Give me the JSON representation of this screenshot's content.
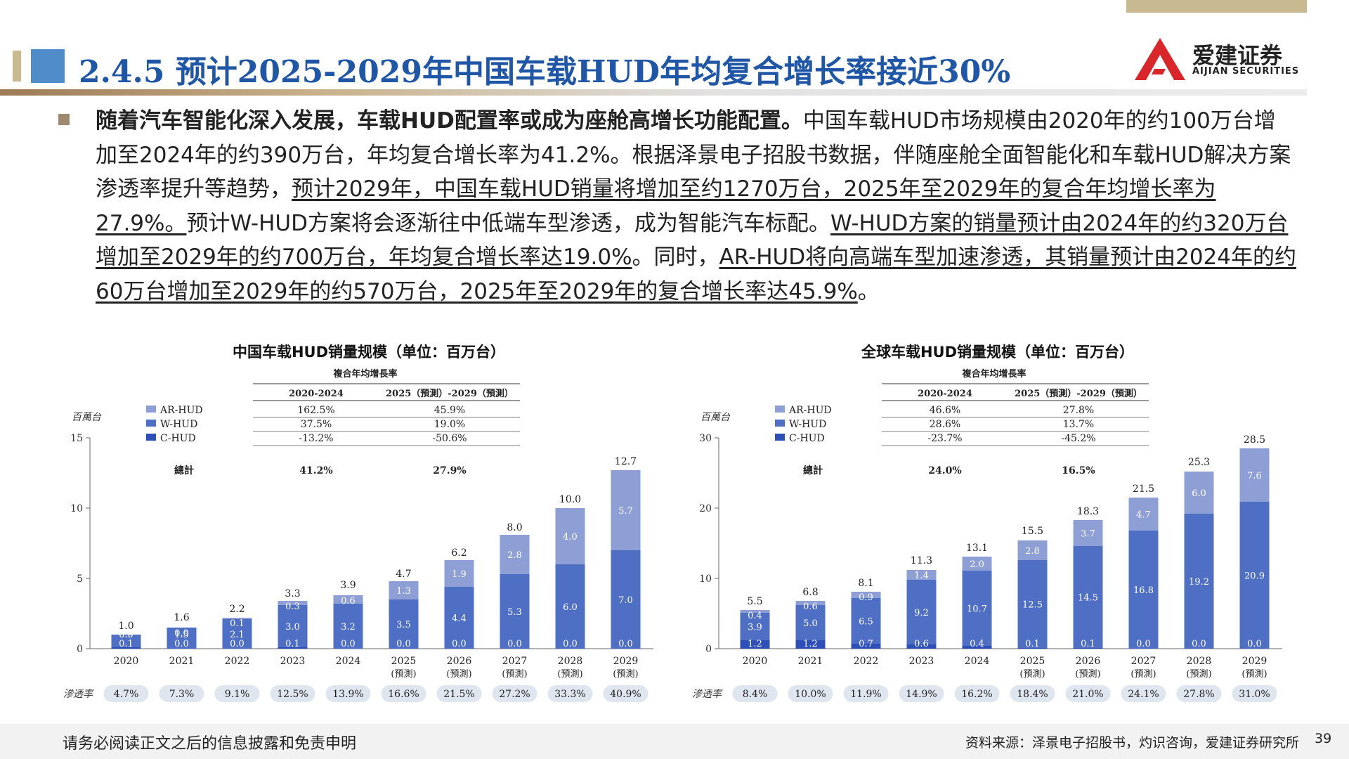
{
  "header": {
    "title": "2.4.5 预计2025-2029年中国车载HUD年均复合增长率接近30%",
    "logo_cn": "爱建证券",
    "logo_en": "AIJIAN SECURITIES"
  },
  "colors": {
    "title": "#1f56a5",
    "gold": "#c8b991",
    "ar_hud": "#8e9fd6",
    "w_hud": "#4f6fc4",
    "c_hud": "#2e4fb8"
  },
  "paragraph": {
    "s1": "随着汽车智能化深入发展，车载HUD配置率或成为座舱高增长功能配置。",
    "s2": "中国车载HUD市场规模由2020年的约100万台增加至2024年的约390万台，年均复合增长率为41.2%。根据泽景电子招股书数据，伴随座舱全面智能化和车载HUD解决方案渗透率提升等趋势，",
    "s3": "预计2029年，中国车载HUD销量将增加至约1270万台，2025年至2029年的复合年均增长率为27.9%。",
    "s4": "预计W-HUD方案将会逐渐往中低端车型渗透，成为智能汽车标配。",
    "s5": "W-HUD方案的销量预计由2024年的约320万台增加至2029年的约700万台，年均复合增长率达19.0%",
    "s6": "。同时，",
    "s7": "AR-HUD将向高端车型加速渗透，其销量预计由2024年的约60万台增加至2029年的约570万台，2025年至2029年的复合增长率达45.9%",
    "s8": "。"
  },
  "chart_data": [
    {
      "type": "bar",
      "stacked": true,
      "title": "中国车载HUD销量规模（单位：百万台）",
      "unit_label": "百萬台",
      "categories": [
        "2020",
        "2021",
        "2022",
        "2023",
        "2024",
        "2025",
        "2026",
        "2027",
        "2028",
        "2029"
      ],
      "category_sub": [
        "",
        "",
        "",
        "",
        "",
        "(預測)",
        "(預測)",
        "(預測)",
        "(預測)",
        "(預測)"
      ],
      "series": [
        {
          "name": "C-HUD",
          "values": [
            0.1,
            0.0,
            0.0,
            0.1,
            0.0,
            0.0,
            0.0,
            0.0,
            0.0,
            0.0
          ]
        },
        {
          "name": "W-HUD",
          "values": [
            0.9,
            1.5,
            2.1,
            3.0,
            3.2,
            3.5,
            4.4,
            5.3,
            6.0,
            7.0
          ]
        },
        {
          "name": "AR-HUD",
          "values": [
            0.0,
            0.0,
            0.1,
            0.3,
            0.6,
            1.3,
            1.9,
            2.8,
            4.0,
            5.7
          ]
        }
      ],
      "totals": [
        1.0,
        1.6,
        2.2,
        3.3,
        3.9,
        4.7,
        6.2,
        8.0,
        10.0,
        12.7
      ],
      "ylim": [
        0,
        15
      ],
      "yticks": [
        0,
        5,
        10,
        15
      ],
      "penetration_label": "滲透率",
      "penetration": [
        "4.7%",
        "7.3%",
        "9.1%",
        "12.5%",
        "13.9%",
        "16.6%",
        "21.5%",
        "27.2%",
        "33.3%",
        "40.9%"
      ],
      "cagr_table": {
        "title": "複合年均增長率",
        "col1": "2020-2024",
        "col2": "2025（預測）-2029（預測）",
        "rows": [
          {
            "name": "AR-HUD",
            "c1": "162.5%",
            "c2": "45.9%"
          },
          {
            "name": "W-HUD",
            "c1": "37.5%",
            "c2": "19.0%"
          },
          {
            "name": "C-HUD",
            "c1": "-13.2%",
            "c2": "-50.6%"
          }
        ],
        "total": {
          "name": "總計",
          "c1": "41.2%",
          "c2": "27.9%"
        }
      }
    },
    {
      "type": "bar",
      "stacked": true,
      "title": "全球车载HUD销量规模（单位：百万台）",
      "unit_label": "百萬台",
      "categories": [
        "2020",
        "2021",
        "2022",
        "2023",
        "2024",
        "2025",
        "2026",
        "2027",
        "2028",
        "2029"
      ],
      "category_sub": [
        "",
        "",
        "",
        "",
        "",
        "(預測)",
        "(預測)",
        "(預測)",
        "(預測)",
        "(預測)"
      ],
      "series": [
        {
          "name": "C-HUD",
          "values": [
            1.2,
            1.2,
            0.7,
            0.6,
            0.4,
            0.1,
            0.1,
            0.0,
            0.0,
            0.0
          ]
        },
        {
          "name": "W-HUD",
          "values": [
            3.9,
            5.0,
            6.5,
            9.2,
            10.7,
            12.5,
            14.5,
            16.8,
            19.2,
            20.9
          ]
        },
        {
          "name": "AR-HUD",
          "values": [
            0.4,
            0.6,
            0.9,
            1.4,
            2.0,
            2.8,
            3.7,
            4.7,
            6.0,
            7.6
          ]
        }
      ],
      "totals": [
        5.5,
        6.8,
        8.1,
        11.3,
        13.1,
        15.5,
        18.3,
        21.5,
        25.3,
        28.5
      ],
      "ylim": [
        0,
        30
      ],
      "yticks": [
        0,
        10,
        20,
        30
      ],
      "penetration_label": "滲透率",
      "penetration": [
        "8.4%",
        "10.0%",
        "11.9%",
        "14.9%",
        "16.2%",
        "18.4%",
        "21.0%",
        "24.1%",
        "27.8%",
        "31.0%"
      ],
      "cagr_table": {
        "title": "複合年均增長率",
        "col1": "2020-2024",
        "col2": "2025（預測）-2029（預測）",
        "rows": [
          {
            "name": "AR-HUD",
            "c1": "46.6%",
            "c2": "27.8%"
          },
          {
            "name": "W-HUD",
            "c1": "28.6%",
            "c2": "13.7%"
          },
          {
            "name": "C-HUD",
            "c1": "-23.7%",
            "c2": "-45.2%"
          }
        ],
        "total": {
          "name": "總計",
          "c1": "24.0%",
          "c2": "16.5%"
        }
      }
    }
  ],
  "footer": {
    "disclaimer": "请务必阅读正文之后的信息披露和免责申明",
    "source": "资料来源：泽景电子招股书，灼识咨询，爱建证券研究所",
    "page": "39"
  }
}
